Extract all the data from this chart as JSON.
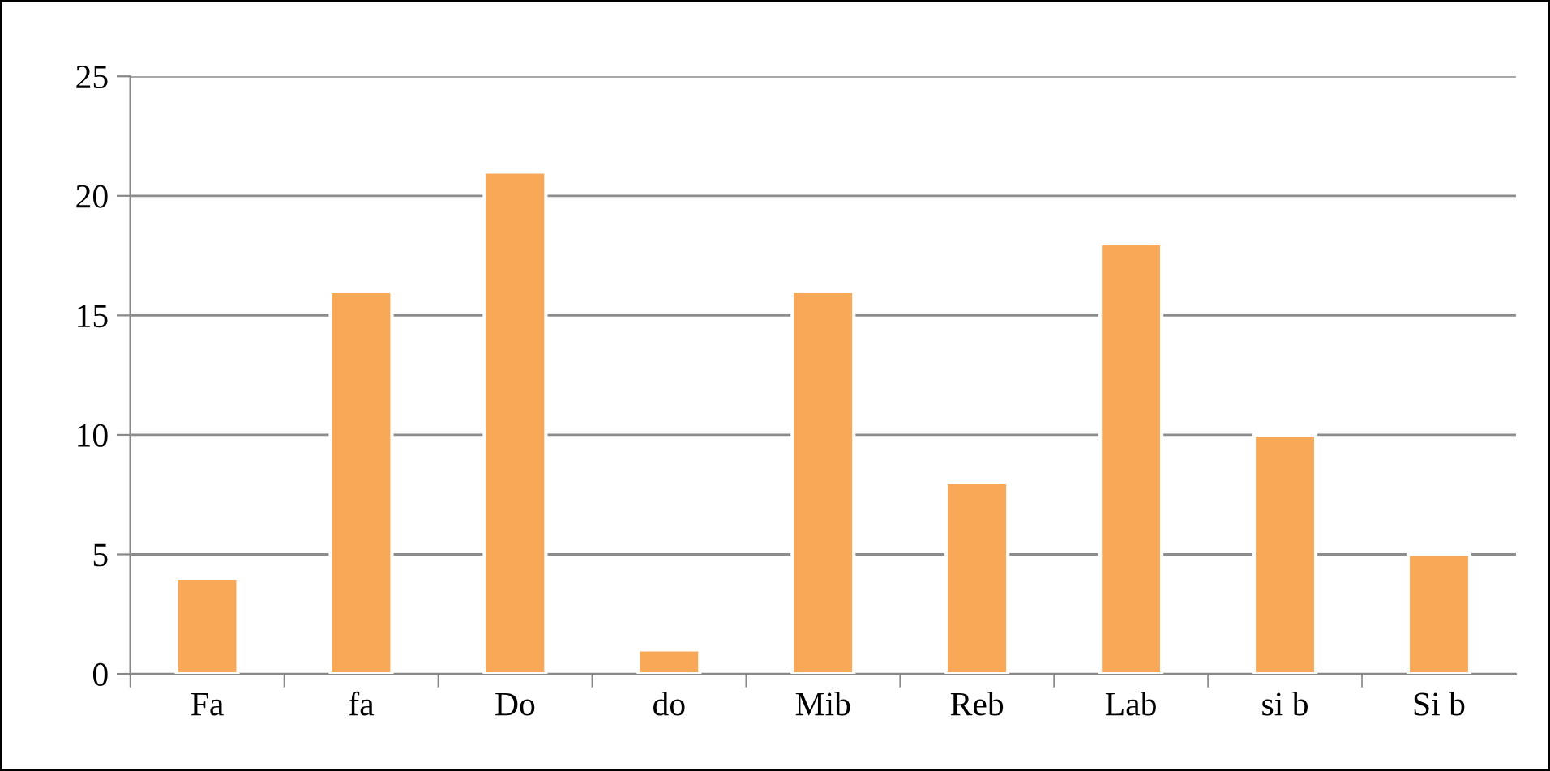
{
  "chart_data": {
    "type": "bar",
    "categories": [
      "Fa",
      "fa",
      "Do",
      "do",
      "Mib",
      "Reb",
      "Lab",
      "si b",
      "Si b"
    ],
    "values": [
      4,
      16,
      21,
      1,
      16,
      8,
      18,
      10,
      5
    ],
    "color": "#f9a857",
    "ylim": [
      0,
      25
    ],
    "yticks": [
      0,
      5,
      10,
      15,
      20,
      25
    ],
    "grid": "y",
    "legend": false
  }
}
